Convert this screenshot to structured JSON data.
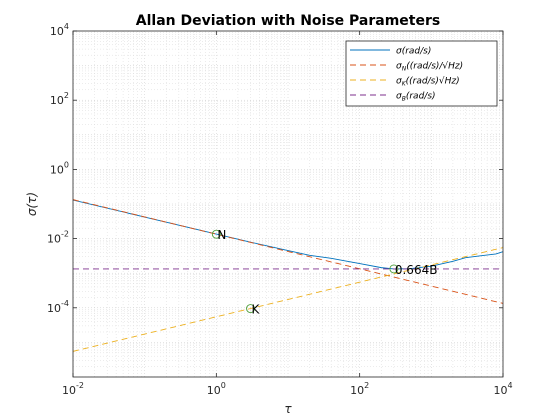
{
  "chart_data": {
    "type": "line",
    "title": "Allan Deviation with Noise Parameters",
    "xlabel": "τ",
    "ylabel": "σ(τ)",
    "xscale": "log",
    "yscale": "log",
    "xlim": [
      0.01,
      10000
    ],
    "ylim": [
      1e-06,
      10000
    ],
    "x_ticks": [
      {
        "value": 0.01,
        "base": "10",
        "exp": "-2"
      },
      {
        "value": 1,
        "base": "10",
        "exp": "0"
      },
      {
        "value": 100,
        "base": "10",
        "exp": "2"
      },
      {
        "value": 10000,
        "base": "10",
        "exp": "4"
      }
    ],
    "y_ticks": [
      {
        "value": 0.0001,
        "base": "10",
        "exp": "-4"
      },
      {
        "value": 0.01,
        "base": "10",
        "exp": "-2"
      },
      {
        "value": 1,
        "base": "10",
        "exp": "0"
      },
      {
        "value": 100,
        "base": "10",
        "exp": "2"
      },
      {
        "value": 10000,
        "base": "10",
        "exp": "4"
      }
    ],
    "grid": true,
    "legend_position": "top-right",
    "series": [
      {
        "name": "σ(rad/s)",
        "color": "#0072BD",
        "dash": "solid",
        "points": [
          [
            0.01,
            0.13
          ],
          [
            0.1,
            0.042
          ],
          [
            1,
            0.0135
          ],
          [
            3,
            0.0079
          ],
          [
            10,
            0.0045
          ],
          [
            20,
            0.0033
          ],
          [
            40,
            0.0027
          ],
          [
            100,
            0.0019
          ],
          [
            200,
            0.00145
          ],
          [
            300,
            0.00133
          ],
          [
            500,
            0.00135
          ],
          [
            1000,
            0.0016
          ],
          [
            2000,
            0.0022
          ],
          [
            3000,
            0.0028
          ],
          [
            5000,
            0.0032
          ],
          [
            8000,
            0.0036
          ],
          [
            10000,
            0.0042
          ]
        ]
      },
      {
        "name": "σ_N((rad/s)/√Hz)",
        "color": "#D95319",
        "dash": "dashed",
        "points": [
          [
            0.01,
            0.134
          ],
          [
            10000,
            0.000134
          ]
        ]
      },
      {
        "name": "σ_K((rad/s)√Hz)",
        "color": "#EDB120",
        "dash": "dashed",
        "points": [
          [
            0.01,
            5.5e-06
          ],
          [
            10000,
            0.0055
          ]
        ]
      },
      {
        "name": "σ_B(rad/s)",
        "color": "#7E2F8E",
        "dash": "dashed",
        "points": [
          [
            0.01,
            0.00133
          ],
          [
            10000,
            0.00133
          ]
        ]
      }
    ],
    "annotations": [
      {
        "text": "N",
        "x": 1,
        "y": 0.0134,
        "marker": "circle"
      },
      {
        "text": "K",
        "x": 3,
        "y": 9.5e-05,
        "marker": "circle"
      },
      {
        "text": "0.664B",
        "x": 300,
        "y": 0.00133,
        "marker": "circle"
      }
    ]
  }
}
